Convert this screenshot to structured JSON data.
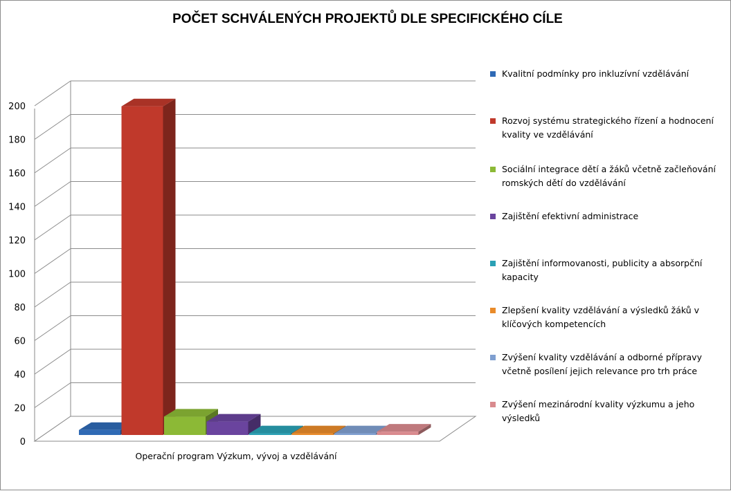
{
  "chart_data": {
    "type": "bar",
    "title": "POČET SCHVÁLENÝCH PROJEKTŮ DLE SPECIFICKÉHO CÍLE",
    "categories": [
      "Operační program Výzkum, vývoj a vzdělávání"
    ],
    "ylim": [
      0,
      200
    ],
    "yticks": [
      0,
      20,
      40,
      60,
      80,
      100,
      120,
      140,
      160,
      180,
      200
    ],
    "grid": true,
    "legend_position": "right",
    "series": [
      {
        "name": "Kvalitní podmínky pro inkluzívní vzdělávání",
        "values": [
          3
        ],
        "color": "#2f6ab5"
      },
      {
        "name": "Rozvoj systému strategického řízení a hodnocení kvality ve vzdělávání",
        "values": [
          196
        ],
        "color": "#c0392b"
      },
      {
        "name": "Sociální integrace dětí a žáků včetně začleňování romských dětí do vzdělávání",
        "values": [
          11
        ],
        "color": "#8cb936"
      },
      {
        "name": "Zajištění efektivní administrace",
        "values": [
          8
        ],
        "color": "#6a449e"
      },
      {
        "name": "Zajištění informovanosti, publicity a absorpční kapacity",
        "values": [
          1
        ],
        "color": "#2aa0b4"
      },
      {
        "name": "Zlepšení kvality vzdělávání a výsledků žáků v klíčových kompetencích",
        "values": [
          1
        ],
        "color": "#e98b2a"
      },
      {
        "name": "Zvýšení kvality vzdělávání a odborné přípravy včetně posílení jejich relevance pro trh práce",
        "values": [
          1
        ],
        "color": "#7f9fd0"
      },
      {
        "name": "Zvýšení mezinárodní kvality výzkumu a jeho výsledků",
        "values": [
          2
        ],
        "color": "#d98a8e"
      }
    ]
  }
}
